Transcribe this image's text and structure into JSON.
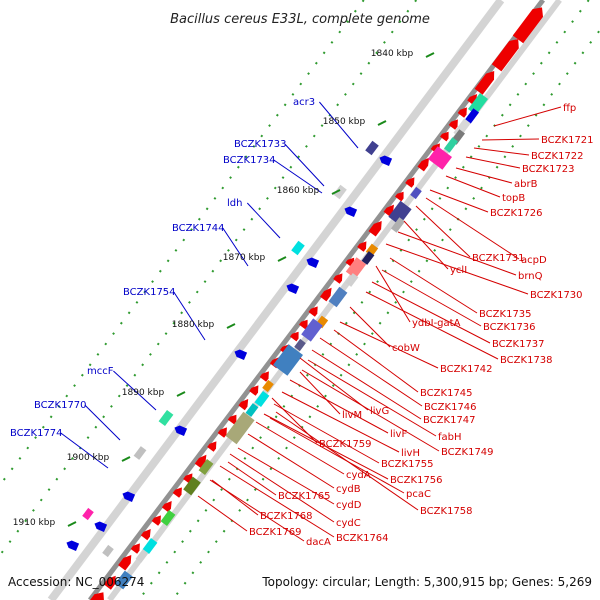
{
  "title": "Bacillus cereus E33L, complete genome",
  "footer": {
    "accession": "Accession: NC_006274",
    "topology": "Topology: circular; Length: 5,300,915 bp; Genes: 5,269"
  },
  "colors": {
    "backbone": "#909090",
    "forward_gene": "#ee0000",
    "left_label": "#0000c8",
    "right_label": "#d40000",
    "tick": "#1a8a1a"
  },
  "kbp_ticks": [
    "1840 kbp",
    "1850 kbp",
    "1860 kbp",
    "1870 kbp",
    "1880 kbp",
    "1890 kbp",
    "1900 kbp",
    "1910 kbp"
  ],
  "left_labels": [
    "acr3",
    "BCZK1733",
    "BCZK1734",
    "ldh",
    "BCZK1744",
    "BCZK1754",
    "mccF",
    "BCZK1770",
    "BCZK1774"
  ],
  "right_labels": [
    "ffp",
    "BCZK1721",
    "BCZK1722",
    "BCZK1723",
    "abrB",
    "topB",
    "BCZK1726",
    "acpD",
    "BCZK1731",
    "yclI",
    "brnQ",
    "BCZK1730",
    "BCZK1735",
    "ydbI-gatA",
    "BCZK1736",
    "BCZK1737",
    "cobW",
    "BCZK1738",
    "BCZK1742",
    "BCZK1745",
    "BCZK1746",
    "livM",
    "livG",
    "BCZK1747",
    "livF",
    "fabH",
    "BCZK1759",
    "livH",
    "BCZK1749",
    "BCZK1755",
    "BCZK1756",
    "cydA",
    "pcaC",
    "cydB",
    "BCZK1765",
    "BCZK1758",
    "cydD",
    "BCZK1768",
    "cydC",
    "BCZK1764",
    "BCZK1769",
    "dacA"
  ]
}
